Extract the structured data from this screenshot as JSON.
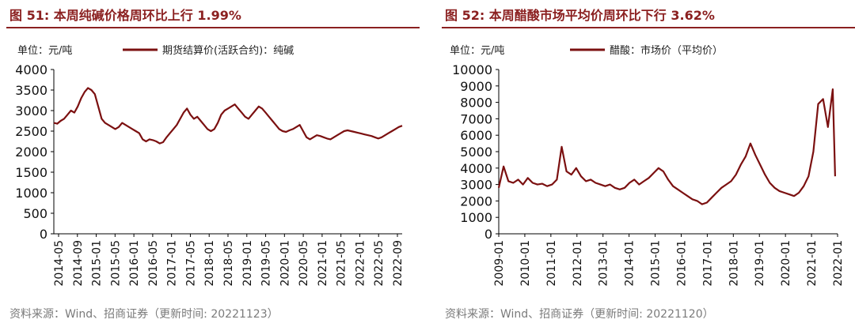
{
  "colors": {
    "accent": "#8b2020",
    "series": "#7b1010",
    "source": "#7a7a7a"
  },
  "left": {
    "title": "图 51:  本周纯碱价格周环比上行 1.99%",
    "source": "资料来源：Wind、招商证券（更新时间: 20221123）",
    "chart_data": {
      "type": "line",
      "unit_label": "单位：元/吨",
      "ylim": [
        0,
        4000
      ],
      "yticks": [
        "0",
        "500",
        "1000",
        "1500",
        "2000",
        "2500",
        "3000",
        "3500",
        "4000"
      ],
      "xticks": [
        "2014-05",
        "2014-09",
        "2015-01",
        "2015-05",
        "2016-01",
        "2016-05",
        "2017-01",
        "2017-05",
        "2018-01",
        "2018-05",
        "2019-01",
        "2019-05",
        "2020-01",
        "2020-05",
        "2021-01",
        "2021-05",
        "2022-01",
        "2022-05",
        "2022-09"
      ],
      "series": [
        {
          "name": "期货结算价(活跃合约)：纯碱",
          "x": [
            0,
            1,
            2,
            3,
            4,
            5,
            6,
            7,
            8,
            9,
            10,
            11,
            12,
            13,
            14,
            15,
            16,
            17,
            18,
            19,
            20,
            21,
            22,
            23,
            24,
            25,
            26,
            27,
            28,
            29,
            30,
            31,
            32,
            33,
            34,
            35,
            36,
            37,
            38,
            39,
            40,
            41,
            42,
            43,
            44,
            45,
            46,
            47,
            48,
            49,
            50,
            51,
            52,
            53,
            54,
            55,
            56,
            57,
            58,
            59,
            60,
            61,
            62,
            63,
            64,
            65,
            66,
            67,
            68,
            69,
            70,
            71,
            72,
            73,
            74,
            75,
            76,
            77,
            78,
            79,
            80,
            81,
            82,
            83,
            84,
            85,
            86,
            87,
            88,
            89,
            90,
            91,
            92,
            93,
            94,
            95,
            96,
            97,
            98,
            99,
            100,
            101,
            102
          ],
          "values": [
            2700,
            2680,
            2750,
            2800,
            2900,
            3000,
            2950,
            3100,
            3300,
            3450,
            3550,
            3500,
            3400,
            3100,
            2800,
            2700,
            2650,
            2600,
            2550,
            2600,
            2700,
            2650,
            2600,
            2550,
            2500,
            2450,
            2300,
            2250,
            2300,
            2280,
            2250,
            2200,
            2230,
            2350,
            2450,
            2550,
            2650,
            2800,
            2950,
            3050,
            2900,
            2800,
            2850,
            2750,
            2650,
            2550,
            2500,
            2550,
            2700,
            2900,
            3000,
            3050,
            3100,
            3150,
            3050,
            2950,
            2850,
            2800,
            2900,
            3000,
            3100,
            3050,
            2950,
            2850,
            2750,
            2650,
            2550,
            2500,
            2480,
            2520,
            2550,
            2600,
            2650,
            2500,
            2350,
            2300,
            2350,
            2400,
            2380,
            2350,
            2320,
            2300,
            2350,
            2400,
            2450,
            2500,
            2520,
            2500,
            2480,
            2460,
            2440,
            2420,
            2400,
            2380,
            2350,
            2320,
            2350,
            2400,
            2450,
            2500,
            2550,
            2600,
            2630
          ]
        }
      ]
    }
  },
  "right": {
    "title": "图 52:  本周醋酸市场平均价周环比下行 3.62%",
    "source": "资料来源：Wind、招商证券（更新时间: 20221120）",
    "chart_data": {
      "type": "line",
      "unit_label": "单位：元/吨",
      "ylim": [
        0,
        10000
      ],
      "yticks": [
        "0",
        "1000",
        "2000",
        "3000",
        "4000",
        "5000",
        "6000",
        "7000",
        "8000",
        "9000",
        "10000"
      ],
      "xticks": [
        "2009-01",
        "2010-01",
        "2011-01",
        "2012-01",
        "2013-01",
        "2014-01",
        "2015-01",
        "2016-01",
        "2017-01",
        "2018-01",
        "2019-01",
        "2020-01",
        "2021-01",
        "2022-01"
      ],
      "series": [
        {
          "name": "醋酸：市场价（平均价）",
          "x": [
            0,
            0.2,
            0.4,
            0.6,
            0.8,
            1.0,
            1.2,
            1.4,
            1.6,
            1.8,
            2.0,
            2.2,
            2.4,
            2.6,
            2.8,
            3.0,
            3.2,
            3.4,
            3.6,
            3.8,
            4.0,
            4.2,
            4.4,
            4.6,
            4.8,
            5.0,
            5.2,
            5.4,
            5.6,
            5.8,
            6.0,
            6.2,
            6.4,
            6.6,
            6.8,
            7.0,
            7.2,
            7.4,
            7.6,
            7.8,
            8.0,
            8.2,
            8.4,
            8.6,
            8.8,
            9.0,
            9.2,
            9.4,
            9.6,
            9.8,
            10.0,
            10.2,
            10.4,
            10.6,
            10.8,
            11.0,
            11.2,
            11.4,
            11.6,
            11.8,
            12.0,
            12.2,
            12.4,
            12.6,
            12.8,
            13.0,
            13.2,
            13.4,
            13.6,
            13.8,
            13.9
          ],
          "values": [
            2800,
            4100,
            3200,
            3100,
            3300,
            3000,
            3400,
            3100,
            3000,
            3050,
            2900,
            3000,
            3300,
            5300,
            3800,
            3600,
            4000,
            3500,
            3200,
            3300,
            3100,
            3000,
            2900,
            3000,
            2800,
            2700,
            2800,
            3100,
            3300,
            3000,
            3200,
            3400,
            3700,
            4000,
            3800,
            3300,
            2900,
            2700,
            2500,
            2300,
            2100,
            2000,
            1800,
            1900,
            2200,
            2500,
            2800,
            3000,
            3200,
            3600,
            4200,
            4700,
            5500,
            4800,
            4200,
            3600,
            3100,
            2800,
            2600,
            2500,
            2400,
            2300,
            2500,
            2900,
            3500,
            5000,
            7900,
            8200,
            6500,
            8800,
            3500
          ]
        }
      ]
    }
  }
}
